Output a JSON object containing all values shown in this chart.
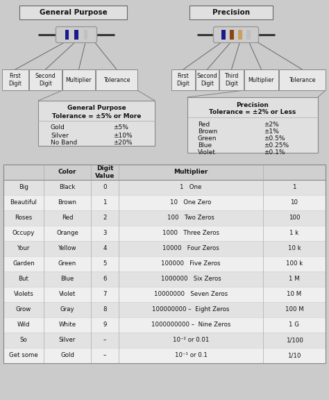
{
  "bg_color": "#cbcbcb",
  "title_gp": "General Purpose",
  "title_pr": "Precision",
  "gp_bands": [
    "#1a1a8c",
    "#1a1a8c",
    "#c0c0c0"
  ],
  "pr_bands": [
    "#1a1a8c",
    "#8B4513",
    "#c8a060",
    "#c0c0c0"
  ],
  "gp_labels": [
    "First\nDigit",
    "Second\nDigit",
    "Multiplier",
    "Tolerance"
  ],
  "pr_labels": [
    "First\nDigit",
    "Second\nDigit",
    "Third\nDigit",
    "Multiplier",
    "Tolerance"
  ],
  "gp_tol_title": "General Purpose\nTolerance = ±5% or More",
  "gp_tol_rows": [
    [
      "Gold",
      "±5%"
    ],
    [
      "Silver",
      "±10%"
    ],
    [
      "No Band",
      "±20%"
    ]
  ],
  "pr_tol_title": "Precision\nTolerance = ±2% or Less",
  "pr_tol_rows": [
    [
      "Red",
      "±2%"
    ],
    [
      "Brown",
      "±1%"
    ],
    [
      "Green",
      "±0.5%"
    ],
    [
      "Blue",
      "±0.25%"
    ],
    [
      "Violet",
      "±0.1%"
    ]
  ],
  "table_header": [
    "",
    "Color",
    "Digit\nValue",
    "Multiplier",
    ""
  ],
  "table_rows": [
    [
      "Big",
      "Black",
      "0",
      "1   One",
      "1"
    ],
    [
      "Beautiful",
      "Brown",
      "1",
      "10   One Zero",
      "10"
    ],
    [
      "Roses",
      "Red",
      "2",
      "100   Two Zeros",
      "100"
    ],
    [
      "Occupy",
      "Orange",
      "3",
      "1000   Three Zeros",
      "1 k"
    ],
    [
      "Your",
      "Yellow",
      "4",
      "10000   Four Zeros",
      "10 k"
    ],
    [
      "Garden",
      "Green",
      "5",
      "100000   Five Zeros",
      "100 k"
    ],
    [
      "But",
      "Blue",
      "6",
      "1000000   Six Zeros",
      "1 M"
    ],
    [
      "Violets",
      "Violet",
      "7",
      "10000000   Seven Zeros",
      "10 M"
    ],
    [
      "Grow",
      "Gray",
      "8",
      "100000000 –  Eight Zeros",
      "100 M"
    ],
    [
      "Wild",
      "White",
      "9",
      "1000000000 –  Nine Zeros",
      "1 G"
    ],
    [
      "So",
      "Silver",
      "–",
      "10⁻² or 0.01",
      "1/100"
    ],
    [
      "Get some",
      "Gold",
      "–",
      "10⁻¹ or 0.1",
      "1/10"
    ]
  ],
  "row_colors_alt": [
    "#e2e2e2",
    "#efefef"
  ],
  "header_color": "#d0d0d0",
  "table_border": "#888888"
}
